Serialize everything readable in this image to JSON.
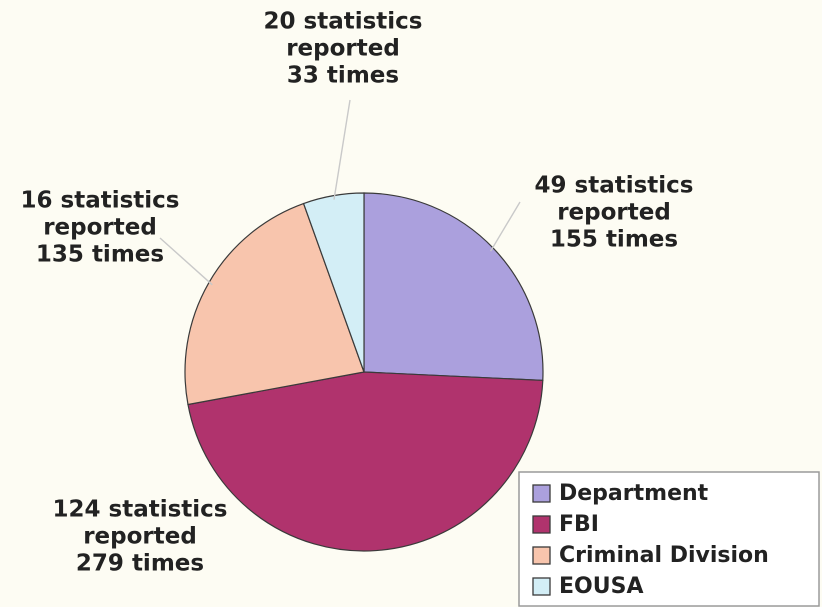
{
  "chart_data": {
    "type": "pie",
    "slices": [
      {
        "name": "Department",
        "statistics": 49,
        "times": 155,
        "color": "#aba0dd",
        "label": [
          "49 statistics",
          "reported",
          "155 times"
        ]
      },
      {
        "name": "FBI",
        "statistics": 124,
        "times": 279,
        "color": "#b0336d",
        "label": [
          "124 statistics",
          "reported",
          "279 times"
        ]
      },
      {
        "name": "Criminal Division",
        "statistics": 16,
        "times": 135,
        "color": "#f8c5ad",
        "label": [
          "16 statistics",
          "reported",
          "135 times"
        ]
      },
      {
        "name": "EOUSA",
        "statistics": 20,
        "times": 33,
        "color": "#d3eef6",
        "label": [
          "20 statistics",
          "reported",
          "33 times"
        ]
      }
    ],
    "start_angle_deg": 0,
    "direction": "clockwise",
    "legend_position": "bottom-right"
  }
}
